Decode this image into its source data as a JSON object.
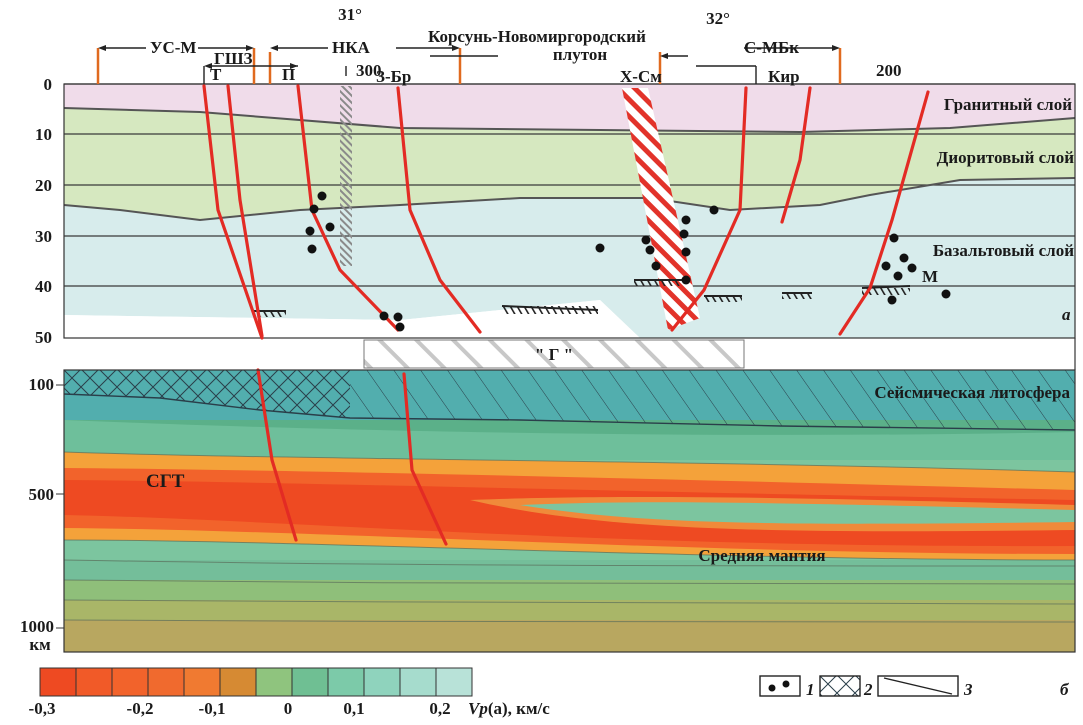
{
  "top_regions": {
    "us_m": "УС-М",
    "gshz": "ГШЗ",
    "nka": "НКА",
    "korsun": "Корсунь-Новомиргородский",
    "pluton": "плутон",
    "s_mbk": "С-МБк"
  },
  "top_labels": {
    "t": "Т",
    "p": "П",
    "z_br": "З-Бр",
    "x_sm": "Х-См",
    "kir": "Кир"
  },
  "coords": {
    "lon31": "31°",
    "lon32": "32°",
    "d300": "300",
    "d200": "200"
  },
  "depth_axis_a": [
    "0",
    "10",
    "20",
    "30",
    "40",
    "50"
  ],
  "depth_axis_b": [
    "100",
    "500",
    "1000",
    "км"
  ],
  "layers": {
    "granite": "Гранитный слой",
    "diorite": "Диоритовый слой",
    "basalt": "Базальтовый слой",
    "m": "М",
    "panel_a": "а"
  },
  "panel_b": {
    "g_label": "\" Г \"",
    "seismic_lithosphere": "Сейсмическая литосфера",
    "sgt": "СГТ",
    "middle_mantle": "Средняя мантия",
    "panel_b_letter": "б"
  },
  "colorbar": {
    "tick_labels": [
      "-0,3",
      "-0,2",
      "-0,1",
      "0",
      "0,1",
      "0,2"
    ],
    "unit_prefix": "Vp",
    "unit_suffix": "(а), км/с",
    "colors": [
      "#ee4a22",
      "#f15a28",
      "#f2632b",
      "#f06a2e",
      "#f07a31",
      "#d68a33",
      "#8fc47e",
      "#6fbf93",
      "#7ccaa9",
      "#8fd3bd",
      "#a6dccd",
      "#b8e2d8"
    ]
  },
  "legend": {
    "item1": "1",
    "item2": "2",
    "item3": "3"
  }
}
